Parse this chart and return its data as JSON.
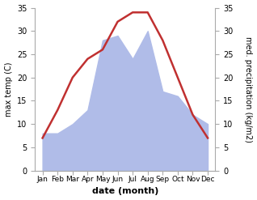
{
  "months": [
    "Jan",
    "Feb",
    "Mar",
    "Apr",
    "May",
    "Jun",
    "Jul",
    "Aug",
    "Sep",
    "Oct",
    "Nov",
    "Dec"
  ],
  "temperature": [
    7,
    13,
    20,
    24,
    26,
    32,
    34,
    34,
    28,
    20,
    12,
    7
  ],
  "precipitation": [
    8,
    8,
    10,
    13,
    28,
    29,
    24,
    30,
    17,
    16,
    12,
    10
  ],
  "temp_color": "#c03030",
  "precip_color": "#b0bce8",
  "ylim_left": [
    0,
    35
  ],
  "ylim_right": [
    0,
    35
  ],
  "yticks": [
    0,
    5,
    10,
    15,
    20,
    25,
    30,
    35
  ],
  "xlabel": "date (month)",
  "ylabel_left": "max temp (C)",
  "ylabel_right": "med. precipitation (kg/m2)",
  "fig_width": 3.18,
  "fig_height": 2.47,
  "dpi": 100
}
